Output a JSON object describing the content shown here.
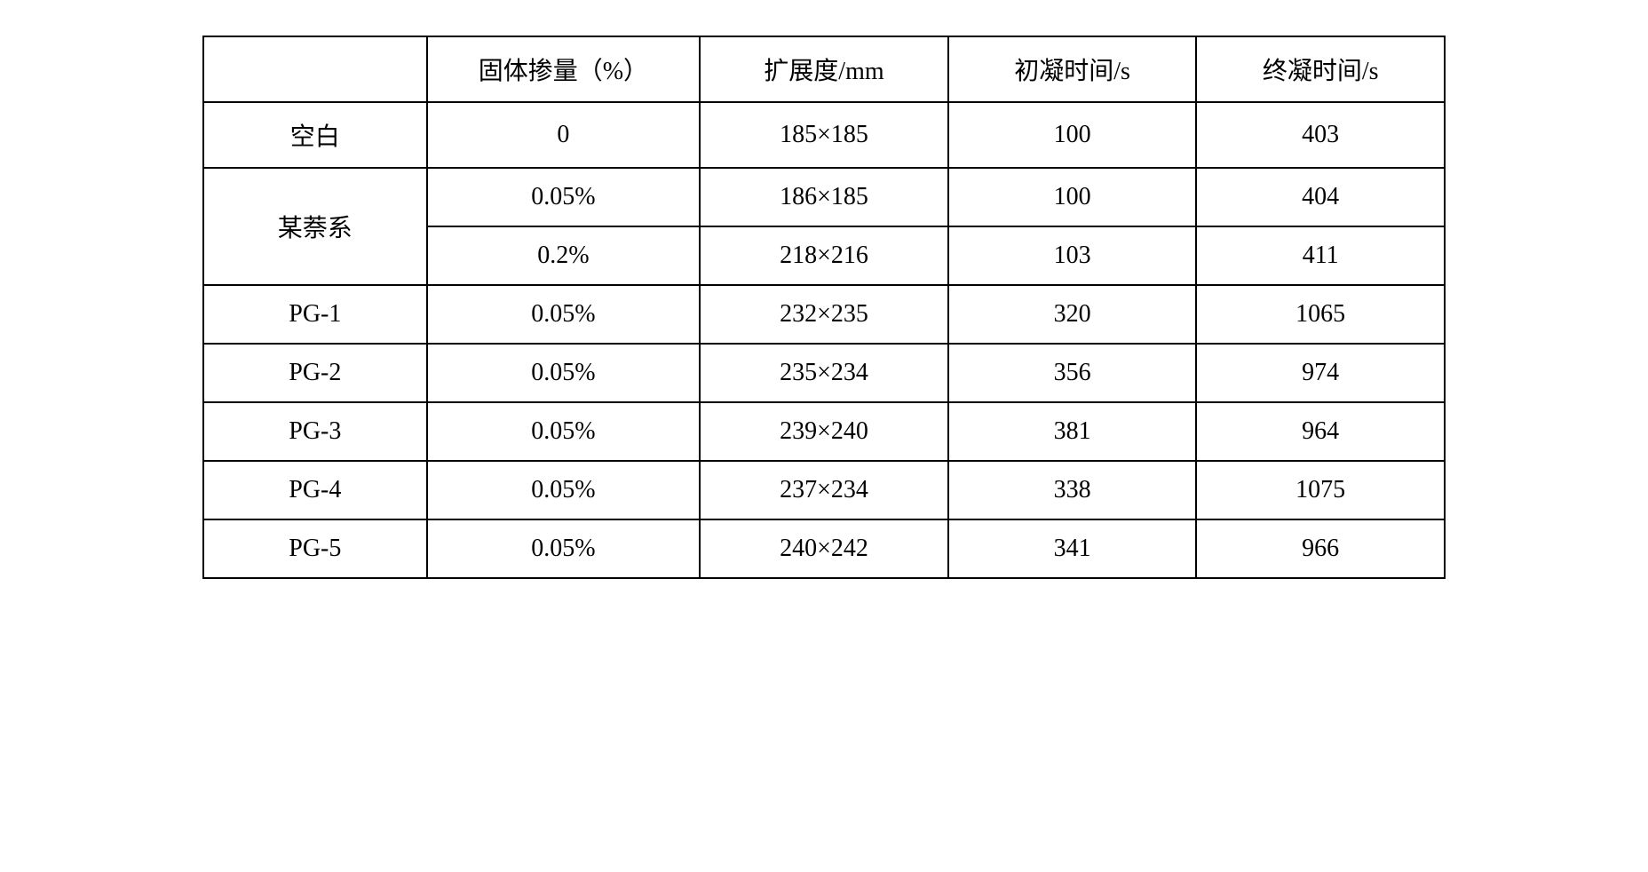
{
  "table": {
    "headers": {
      "label": "",
      "dose": "固体掺量（%）",
      "spread": "扩展度/mm",
      "initial_setting": "初凝时间/s",
      "final_setting": "终凝时间/s"
    },
    "rows": [
      {
        "label": "空白",
        "dose": "0",
        "spread": "185×185",
        "initial_setting": "100",
        "final_setting": "403",
        "rowspan": 1
      },
      {
        "label": "某萘系",
        "dose": "0.05%",
        "spread": "186×185",
        "initial_setting": "100",
        "final_setting": "404",
        "rowspan": 2
      },
      {
        "label": "",
        "dose": "0.2%",
        "spread": "218×216",
        "initial_setting": "103",
        "final_setting": "411",
        "rowspan": 0
      },
      {
        "label": "PG-1",
        "dose": "0.05%",
        "spread": "232×235",
        "initial_setting": "320",
        "final_setting": "1065",
        "rowspan": 1
      },
      {
        "label": "PG-2",
        "dose": "0.05%",
        "spread": "235×234",
        "initial_setting": "356",
        "final_setting": "974",
        "rowspan": 1
      },
      {
        "label": "PG-3",
        "dose": "0.05%",
        "spread": "239×240",
        "initial_setting": "381",
        "final_setting": "964",
        "rowspan": 1
      },
      {
        "label": "PG-4",
        "dose": "0.05%",
        "spread": "237×234",
        "initial_setting": "338",
        "final_setting": "1075",
        "rowspan": 1
      },
      {
        "label": "PG-5",
        "dose": "0.05%",
        "spread": "240×242",
        "initial_setting": "341",
        "final_setting": "966",
        "rowspan": 1
      }
    ],
    "styling": {
      "border_color": "#000000",
      "border_width": 2,
      "background_color": "#ffffff",
      "text_color": "#000000",
      "font_size": 28,
      "font_family": "SimSun",
      "cell_padding": 16
    }
  }
}
